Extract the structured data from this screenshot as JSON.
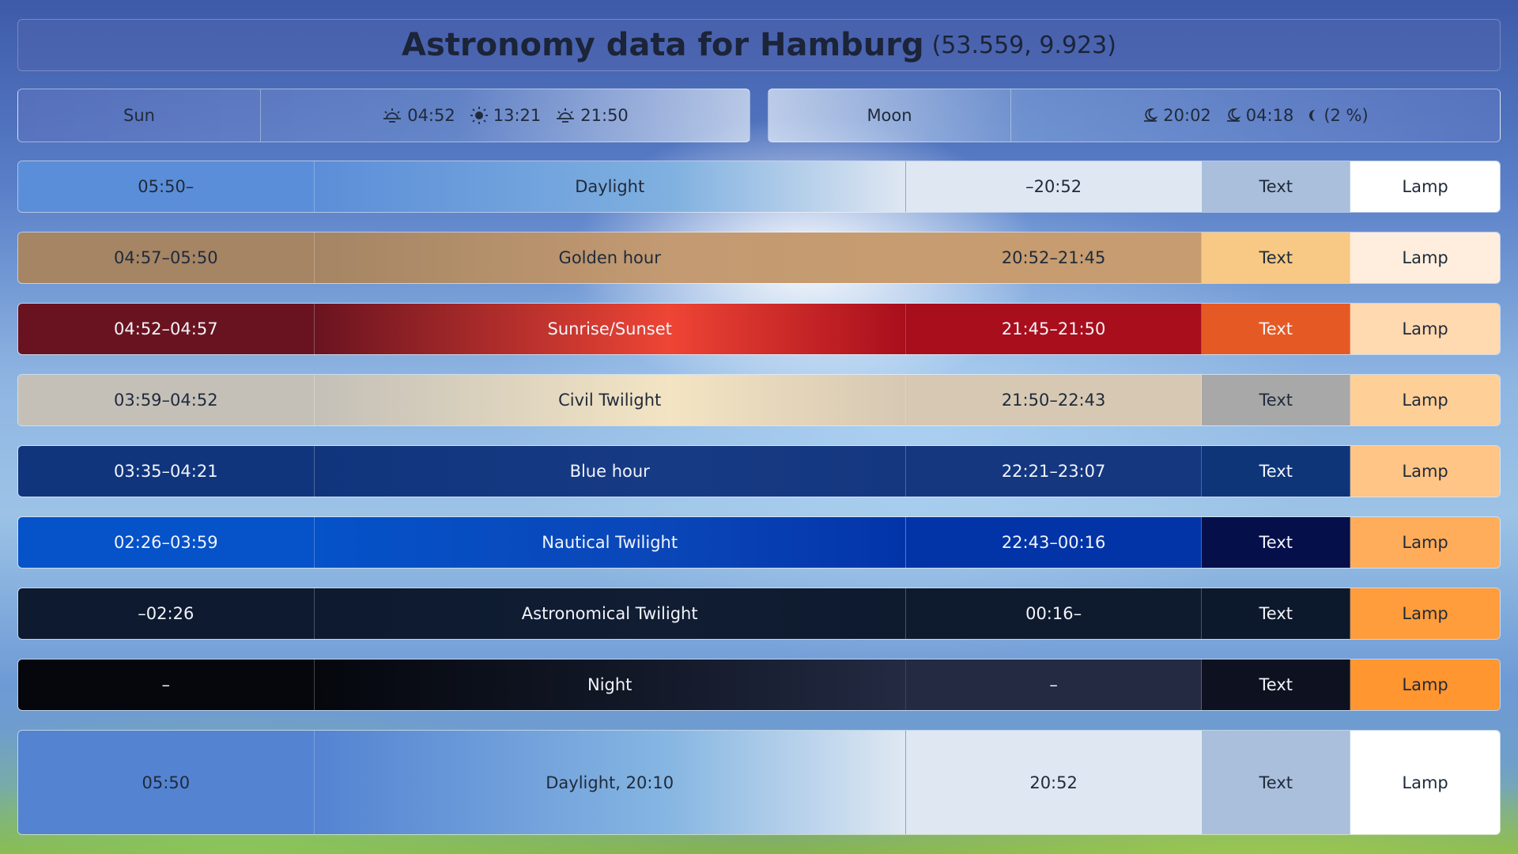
{
  "title": {
    "main": "Astronomy data for Hamburg",
    "coords": "(53.559, 9.923)"
  },
  "sun": {
    "label": "Sun",
    "items": [
      {
        "icon": "sunrise-icon",
        "value": "04:52"
      },
      {
        "icon": "sun-noon-icon",
        "value": "13:21"
      },
      {
        "icon": "sunset-icon",
        "value": "21:50"
      }
    ]
  },
  "moon": {
    "label": "Moon",
    "items": [
      {
        "icon": "moonrise-icon",
        "value": "20:02"
      },
      {
        "icon": "moonset-icon",
        "value": "04:18"
      },
      {
        "icon": "moon-phase-icon",
        "value": "(2 %)"
      }
    ]
  },
  "rows": [
    {
      "start": "05:50–",
      "name": "Daylight",
      "end": "–20:52",
      "text": "Text",
      "lamp": "Lamp",
      "colors": {
        "start": "#5b8ed8",
        "mid": "#7fb0e0",
        "endc": "#dfe7f2",
        "text": "#a9bfdc",
        "lamp": "#ffffff"
      }
    },
    {
      "start": "04:57–05:50",
      "name": "Golden hour",
      "end": "20:52–21:45",
      "text": "Text",
      "lamp": "Lamp",
      "colors": {
        "start": "#a58564",
        "mid": "#c39a72",
        "endc": "#c69c70",
        "text": "#f7c984",
        "lamp": "#ffeedd"
      }
    },
    {
      "start": "04:52–04:57",
      "name": "Sunrise/Sunset",
      "end": "21:45–21:50",
      "text": "Text",
      "lamp": "Lamp",
      "colors": {
        "start": "#6a1320",
        "mid": "#ee4535",
        "endc": "#a80e1c",
        "text": "#e55a24",
        "lamp": "#ffd9b0"
      }
    },
    {
      "start": "03:59–04:52",
      "name": "Civil Twilight",
      "end": "21:50–22:43",
      "text": "Text",
      "lamp": "Lamp",
      "colors": {
        "start": "#c4c0b8",
        "mid": "#f3e4c3",
        "endc": "#d6c8b2",
        "text": "#a8a8a8",
        "lamp": "#ffcf98"
      }
    },
    {
      "start": "03:35–04:21",
      "name": "Blue hour",
      "end": "22:21–23:07",
      "text": "Text",
      "lamp": "Lamp",
      "colors": {
        "start": "#10357d",
        "mid": "#173a84",
        "endc": "#143780",
        "text": "#0f3579",
        "lamp": "#ffc586"
      }
    },
    {
      "start": "02:26–03:59",
      "name": "Nautical Twilight",
      "end": "22:43–00:16",
      "text": "Text",
      "lamp": "Lamp",
      "colors": {
        "start": "#0552c9",
        "mid": "#0a46b8",
        "endc": "#0234a8",
        "text": "#050f4a",
        "lamp": "#ffad5a"
      }
    },
    {
      "start": "–02:26",
      "name": "Astronomical Twilight",
      "end": "00:16–",
      "text": "Text",
      "lamp": "Lamp",
      "colors": {
        "start": "#0d1a2f",
        "mid": "#101d33",
        "endc": "#0e1a2e",
        "text": "#0c182b",
        "lamp": "#ff9d3c"
      }
    },
    {
      "start": "–",
      "name": "Night",
      "end": "–",
      "text": "Text",
      "lamp": "Lamp",
      "colors": {
        "start": "#05070d",
        "mid": "#141a2a",
        "endc": "#232a42",
        "text": "#0d1120",
        "lamp": "#ff9630"
      }
    },
    {
      "start": "05:50",
      "name": "Daylight,    20:10",
      "end": "20:52",
      "text": "Text",
      "lamp": "Lamp",
      "colors": {
        "start": "#5483d2",
        "mid": "#86b6e2",
        "endc": "#dfe8f2",
        "text": "#a9bfdc",
        "lamp": "#ffffff"
      }
    }
  ]
}
